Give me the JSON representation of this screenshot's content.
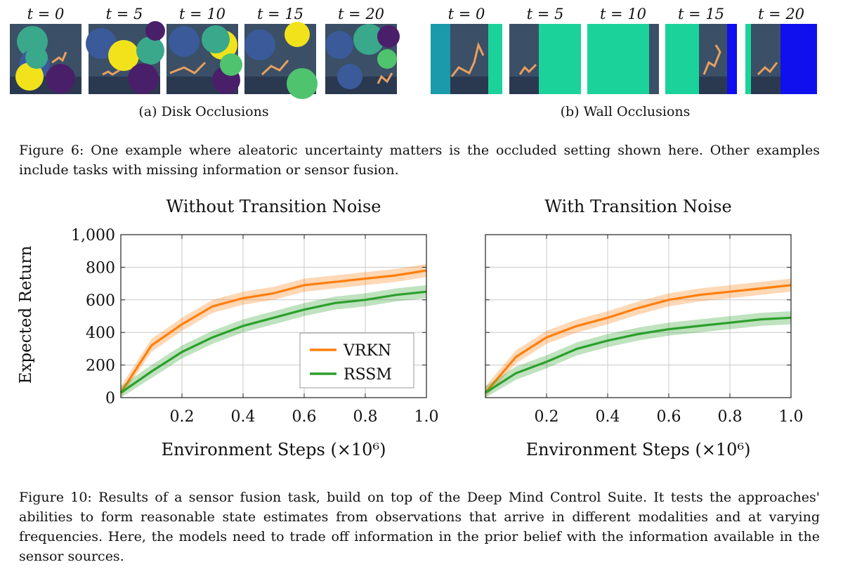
{
  "figure6": {
    "disk_panel": {
      "caption": "(a) Disk Occlusions",
      "frames": [
        {
          "t": "t = 0"
        },
        {
          "t": "t = 5"
        },
        {
          "t": "t = 10"
        },
        {
          "t": "t = 15"
        },
        {
          "t": "t = 20"
        }
      ]
    },
    "wall_panel": {
      "caption": "(b) Wall Occlusions",
      "frames": [
        {
          "t": "t = 0"
        },
        {
          "t": "t = 5"
        },
        {
          "t": "t = 10"
        },
        {
          "t": "t = 15"
        },
        {
          "t": "t = 20"
        }
      ]
    },
    "colors": {
      "background": "#3b4f66",
      "floor": "#2a3950",
      "walker": "#e8a060",
      "disk_yellow": "#f2e21c",
      "disk_teal": "#3aa88a",
      "disk_blue": "#3a5a9a",
      "disk_purple": "#4a1f6a",
      "disk_green": "#4fc36e",
      "wall_teal": "#1bd39a",
      "wall_cyan": "#1a9aaa",
      "wall_blue": "#1010ee"
    },
    "caption_label": "Figure 6:",
    "caption_text": "One example where aleatoric uncertainty matters is the occluded setting shown here. Other examples include tasks with missing information or sensor fusion."
  },
  "figure10": {
    "caption_label": "Figure 10:",
    "caption_text": "Results of a sensor fusion task, build on top of the Deep Mind Control Suite. It tests the approaches' abilities to form reasonable state estimates from observations that arrive in different modalities and at varying frequencies. Here, the models need to trade off information in the prior belief with the information available in the sensor sources."
  },
  "chart_data": [
    {
      "type": "line",
      "title": "Without Transition Noise",
      "xlabel": "Environment Steps (×10⁶)",
      "ylabel": "Expected Return",
      "xlim": [
        0,
        1.0
      ],
      "ylim": [
        0,
        1000
      ],
      "xticks": [
        "0.2",
        "0.4",
        "0.6",
        "0.8",
        "1.0"
      ],
      "yticks": [
        "0",
        "200",
        "400",
        "600",
        "800",
        "1,000"
      ],
      "grid": true,
      "legend": {
        "placement": "bottom-right",
        "entries": [
          "VRKN",
          "RSSM"
        ]
      },
      "x": [
        0,
        0.1,
        0.2,
        0.3,
        0.4,
        0.5,
        0.6,
        0.7,
        0.8,
        0.9,
        1.0
      ],
      "series": [
        {
          "name": "VRKN",
          "color": "#ff7f0e",
          "values": [
            30,
            320,
            450,
            560,
            610,
            640,
            690,
            710,
            730,
            750,
            780
          ],
          "band": [
            40,
            40,
            40,
            40,
            40,
            40,
            40,
            40,
            40,
            40,
            40
          ]
        },
        {
          "name": "RSSM",
          "color": "#2ca02c",
          "values": [
            30,
            160,
            280,
            370,
            440,
            490,
            540,
            580,
            600,
            630,
            650
          ],
          "band": [
            40,
            40,
            40,
            40,
            40,
            40,
            40,
            40,
            40,
            40,
            40
          ]
        }
      ]
    },
    {
      "type": "line",
      "title": "With Transition Noise",
      "xlabel": "Environment Steps (×10⁶)",
      "ylabel": "",
      "xlim": [
        0,
        1.0
      ],
      "ylim": [
        0,
        1000
      ],
      "xticks": [
        "0.2",
        "0.4",
        "0.6",
        "0.8",
        "1.0"
      ],
      "yticks": [],
      "grid": true,
      "legend": null,
      "x": [
        0,
        0.1,
        0.2,
        0.3,
        0.4,
        0.5,
        0.6,
        0.7,
        0.8,
        0.9,
        1.0
      ],
      "series": [
        {
          "name": "VRKN",
          "color": "#ff7f0e",
          "values": [
            30,
            250,
            370,
            440,
            490,
            550,
            600,
            630,
            650,
            670,
            690
          ],
          "band": [
            40,
            40,
            40,
            40,
            40,
            40,
            40,
            40,
            40,
            40,
            40
          ]
        },
        {
          "name": "RSSM",
          "color": "#2ca02c",
          "values": [
            30,
            150,
            220,
            300,
            350,
            390,
            420,
            440,
            460,
            480,
            490
          ],
          "band": [
            40,
            40,
            40,
            40,
            40,
            40,
            40,
            40,
            40,
            40,
            40
          ]
        }
      ]
    }
  ]
}
